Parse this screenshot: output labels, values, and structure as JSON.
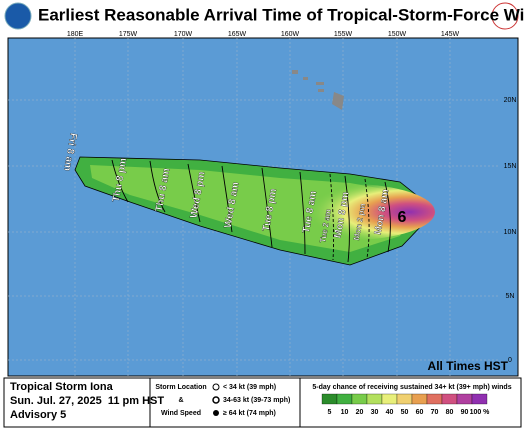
{
  "header": {
    "title": "Earliest Reasonable Arrival Time of Tropical-Storm-Force Winds"
  },
  "map": {
    "longitudes": [
      "180E",
      "175W",
      "170W",
      "165W",
      "160W",
      "155W",
      "150W",
      " 145W"
    ],
    "latitudes": [
      "20N",
      "15N",
      "10N",
      "5N",
      "0"
    ],
    "arrival_times": [
      "Fri 8 am",
      "Thu 8 pm",
      "Thu 8 am",
      "Wed 8 pm",
      "Wed 8 am",
      "Tue 8 pm",
      "Tue 8 am",
      "Tue 2 am",
      "Mon 8 pm",
      "Mon 2 pm",
      "Mon 8 am"
    ],
    "note": "All Times HST"
  },
  "footer": {
    "storm": "Tropical Storm Iona",
    "datetime": "Sun. Jul. 27, 2025  11 pm HST",
    "advisory": "Advisory 5",
    "legend": {
      "storm_location": "Storm Location",
      "amp": "&",
      "wind_speed": "Wind Speed",
      "items": [
        "< 34 kt (39 mph)",
        "34-63 kt (39-73 mph)",
        "≥ 64 kt (74 mph)"
      ]
    },
    "scale": {
      "title": "5-day chance of receiving sustained 34+ kt (39+ mph) winds",
      "labels": [
        "5",
        "10",
        "20",
        "30",
        "40",
        "50",
        "60",
        "70",
        "80",
        "90",
        "100 %"
      ]
    }
  }
}
